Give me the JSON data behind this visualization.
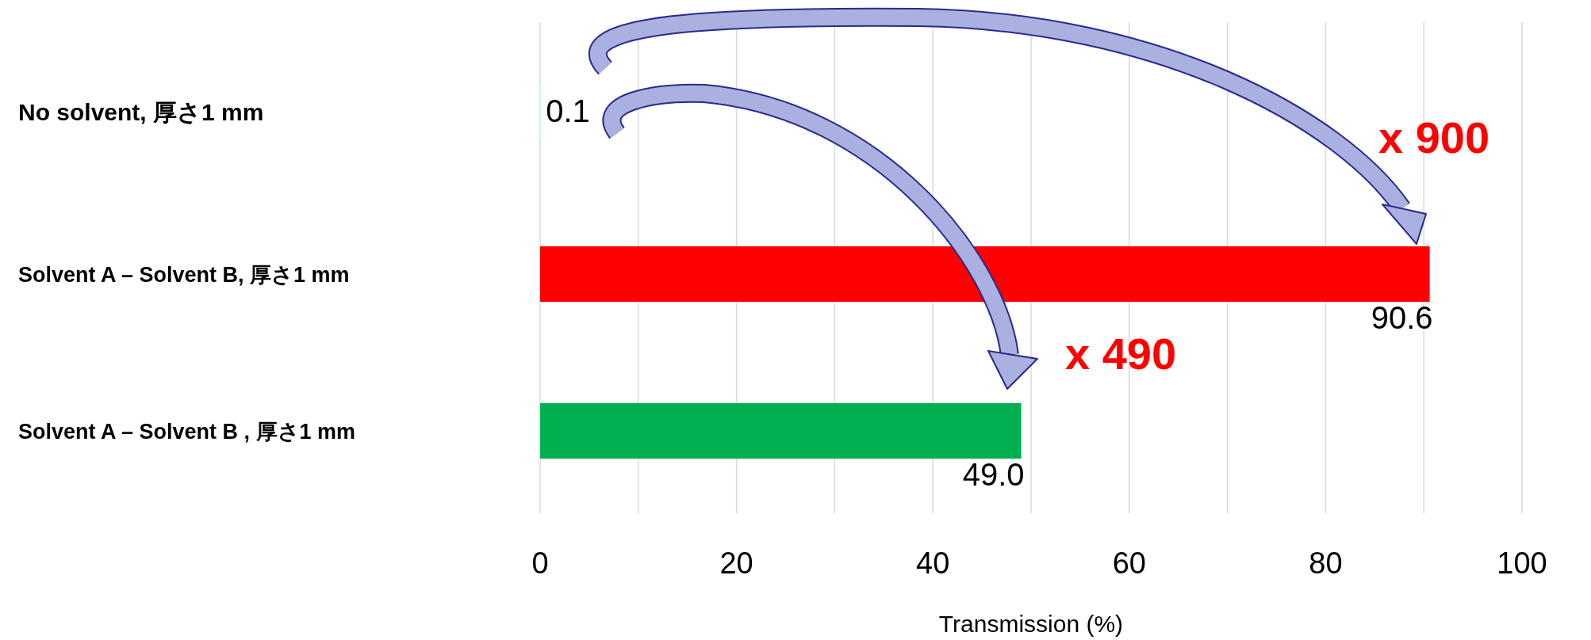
{
  "chart_data": {
    "type": "bar",
    "orientation": "horizontal",
    "xlabel": "Transmission (%)",
    "categories": [
      "No solvent, 厚さ1 mm",
      "Solvent A – Solvent B, 厚さ1 mm",
      "Solvent A – Solvent B , 厚さ1 mm"
    ],
    "values": [
      0.1,
      90.6,
      49.0
    ],
    "colors": [
      "#d8f4f8",
      "#ff0000",
      "#00b050"
    ],
    "value_labels": [
      "0.1",
      "90.6",
      "49.0"
    ],
    "xlim": [
      0,
      100
    ],
    "xticks": [
      0,
      {
        "value": 10,
        "label": null
      },
      20,
      {
        "value": 30,
        "label": null
      },
      40,
      {
        "value": 50,
        "label": null
      },
      60,
      {
        "value": 70,
        "label": null
      },
      80,
      {
        "value": 90,
        "label": null
      },
      100
    ],
    "grid": "x",
    "annotations": [
      "x 900",
      "x 490"
    ]
  }
}
